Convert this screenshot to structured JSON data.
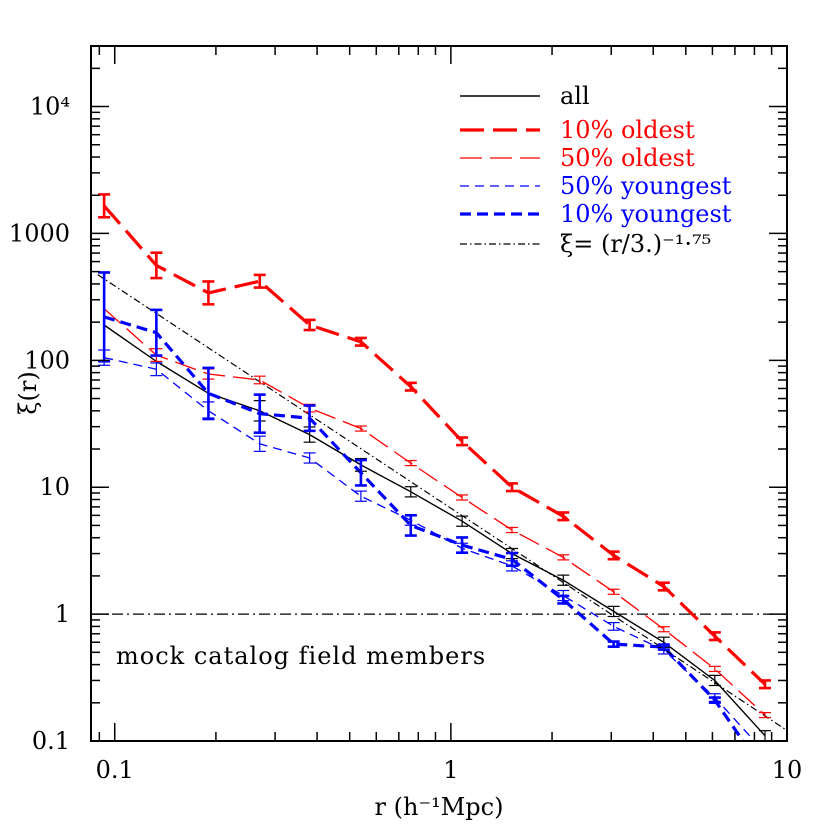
{
  "chart_data": {
    "type": "line",
    "xscale": "log",
    "yscale": "log",
    "xlim": [
      0.085,
      10
    ],
    "ylim": [
      0.1,
      30000
    ],
    "xlabel": "r (h⁻¹Mpc)",
    "ylabel": "ξ(r)",
    "x_ticks": [
      {
        "value": 0.1,
        "label": "0.1"
      },
      {
        "value": 1,
        "label": "1"
      },
      {
        "value": 10,
        "label": "10"
      }
    ],
    "y_ticks": [
      {
        "value": 0.1,
        "label": "0.1"
      },
      {
        "value": 1,
        "label": "1"
      },
      {
        "value": 10,
        "label": "10"
      },
      {
        "value": 100,
        "label": "100"
      },
      {
        "value": 1000,
        "label": "1000"
      },
      {
        "value": 10000,
        "label": "10⁴"
      }
    ],
    "annotation": "mock catalog field members",
    "legend_position": "top-right",
    "series": [
      {
        "name": "all",
        "color": "#000000",
        "width": 1.4,
        "dash": "",
        "x": [
          0.093,
          0.133,
          0.19,
          0.27,
          0.38,
          0.54,
          0.76,
          1.08,
          1.52,
          2.16,
          3.05,
          4.3,
          6.1,
          8.6
        ],
        "y": [
          190,
          98,
          55,
          40,
          26,
          15,
          9.2,
          5.4,
          3.0,
          1.85,
          1.05,
          0.6,
          0.3,
          0.11
        ],
        "err": [
          0,
          0,
          0,
          0.08,
          0.06,
          0.05,
          0.04,
          0.04,
          0.04,
          0.04,
          0.04,
          0.04,
          0.04,
          0.04
        ]
      },
      {
        "name": "10% oldest",
        "color": "#ff0000",
        "width": 3.2,
        "dash": "24,9",
        "x": [
          0.093,
          0.133,
          0.19,
          0.27,
          0.38,
          0.54,
          0.76,
          1.08,
          1.52,
          2.16,
          3.05,
          4.3,
          6.1,
          8.6
        ],
        "y": [
          1650,
          560,
          340,
          420,
          190,
          140,
          62,
          23,
          10,
          5.9,
          2.9,
          1.65,
          0.67,
          0.28
        ],
        "err": [
          0.09,
          0.1,
          0.09,
          0.05,
          0.04,
          0.03,
          0.03,
          0.03,
          0.03,
          0.03,
          0.03,
          0.03,
          0.03,
          0.03
        ]
      },
      {
        "name": "50% oldest",
        "color": "#ff0000",
        "width": 1.3,
        "dash": "22,8",
        "x": [
          0.093,
          0.133,
          0.19,
          0.27,
          0.38,
          0.54,
          0.76,
          1.08,
          1.52,
          2.16,
          3.05,
          4.3,
          6.1,
          8.6
        ],
        "y": [
          255,
          110,
          78,
          70,
          42,
          29,
          15.5,
          8.3,
          4.6,
          2.8,
          1.5,
          0.76,
          0.37,
          0.16
        ],
        "err": [
          0,
          0.05,
          0.04,
          0.03,
          0.03,
          0.02,
          0.02,
          0.02,
          0.02,
          0.02,
          0.02,
          0.02,
          0.02,
          0.02
        ]
      },
      {
        "name": "50% youngest",
        "color": "#0000ff",
        "width": 1.3,
        "dash": "9,6",
        "x": [
          0.093,
          0.133,
          0.19,
          0.27,
          0.38,
          0.54,
          0.76,
          1.08,
          1.52,
          2.16,
          3.05,
          4.3,
          6.1,
          8.0
        ],
        "y": [
          105,
          85,
          40,
          22,
          17,
          8.5,
          5.5,
          3.3,
          2.4,
          1.4,
          0.8,
          0.52,
          0.22,
          0.1
        ],
        "err": [
          0.06,
          0.05,
          0.07,
          0.06,
          0.04,
          0.04,
          0.04,
          0.04,
          0.04,
          0.04,
          0.03,
          0.03,
          0.03,
          0
        ]
      },
      {
        "name": "10% youngest",
        "color": "#0000ff",
        "width": 3.2,
        "dash": "11,6",
        "x": [
          0.093,
          0.133,
          0.19,
          0.27,
          0.38,
          0.54,
          0.76,
          1.08,
          1.52,
          2.16,
          3.05,
          4.3,
          6.1,
          7.4
        ],
        "y": [
          220,
          165,
          55,
          38,
          35,
          13,
          5.0,
          3.5,
          2.7,
          1.3,
          0.58,
          0.55,
          0.21,
          0.1
        ],
        "err": [
          0.35,
          0.18,
          0.2,
          0.15,
          0.1,
          0.1,
          0.08,
          0.06,
          0.05,
          0.03,
          0.02,
          0.02,
          0.02,
          0
        ]
      },
      {
        "name": "ξ= (r/3.)⁻¹·⁷⁵",
        "color": "#000000",
        "width": 1.2,
        "dash": "7,3,1.5,3",
        "x": [
          0.089,
          10
        ],
        "y": [
          474,
          0.121
        ],
        "err": [
          0,
          0
        ]
      }
    ],
    "reference_line": {
      "y": 1,
      "color": "#000000",
      "dash": "11,4,2,4"
    }
  }
}
